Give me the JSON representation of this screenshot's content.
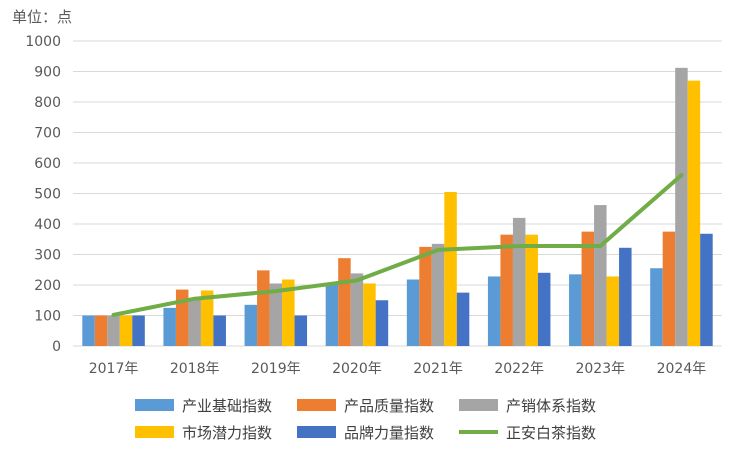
{
  "chart_data": {
    "type": "bar",
    "unit_label": "单位：点",
    "title": "",
    "xlabel": "",
    "ylabel": "",
    "ylim": [
      0,
      1000
    ],
    "yticks": [
      0,
      100,
      200,
      300,
      400,
      500,
      600,
      700,
      800,
      900,
      1000
    ],
    "grid": true,
    "legend_position": "bottom",
    "categories": [
      "2017年",
      "2018年",
      "2019年",
      "2020年",
      "2021年",
      "2022年",
      "2023年",
      "2024年"
    ],
    "series": [
      {
        "name": "产业基础指数",
        "type": "bar",
        "color": "#5B9BD5",
        "values": [
          100,
          125,
          135,
          200,
          218,
          228,
          235,
          255
        ]
      },
      {
        "name": "产品质量指数",
        "type": "bar",
        "color": "#ED7D31",
        "values": [
          100,
          185,
          248,
          288,
          325,
          365,
          375,
          375
        ]
      },
      {
        "name": "产销体系指数",
        "type": "bar",
        "color": "#A5A5A5",
        "values": [
          100,
          155,
          205,
          238,
          335,
          420,
          462,
          912
        ]
      },
      {
        "name": "市场潜力指数",
        "type": "bar",
        "color": "#FFC000",
        "values": [
          100,
          182,
          218,
          205,
          505,
          365,
          228,
          870
        ]
      },
      {
        "name": "品牌力量指数",
        "type": "bar",
        "color": "#4472C4",
        "values": [
          100,
          100,
          100,
          150,
          175,
          240,
          322,
          368
        ]
      },
      {
        "name": "正安白茶指数",
        "type": "line",
        "color": "#70AD47",
        "values": [
          102,
          155,
          180,
          215,
          315,
          328,
          328,
          560
        ]
      }
    ]
  }
}
